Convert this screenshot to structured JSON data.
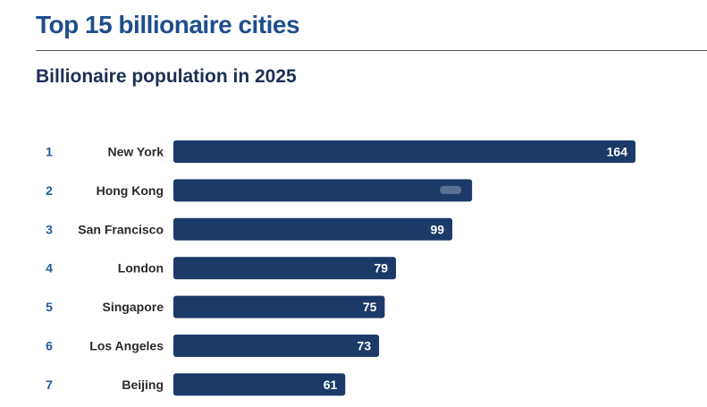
{
  "header": {
    "title": "Top 15 billionaire cities",
    "subtitle": "Billionaire population in 2025"
  },
  "colors": {
    "title": "#1f4e8c",
    "bar": "#1c3a68",
    "rank": "#1f5a9e",
    "city": "#2a2a2a"
  },
  "chart_data": {
    "type": "bar",
    "orientation": "horizontal",
    "title": "Top 15 billionaire cities",
    "subtitle": "Billionaire population in 2025",
    "ranks": [
      "1",
      "2",
      "3",
      "4",
      "5",
      "6",
      "7"
    ],
    "categories": [
      "New York",
      "Hong Kong",
      "San Francisco",
      "London",
      "Singapore",
      "Los Angeles",
      "Beijing"
    ],
    "values": [
      164,
      106,
      99,
      79,
      75,
      73,
      61
    ],
    "value_labels": [
      "164",
      "",
      "99",
      "79",
      "75",
      "73",
      "61"
    ],
    "xlim": [
      0,
      164
    ],
    "grid": false,
    "legend": "none"
  }
}
